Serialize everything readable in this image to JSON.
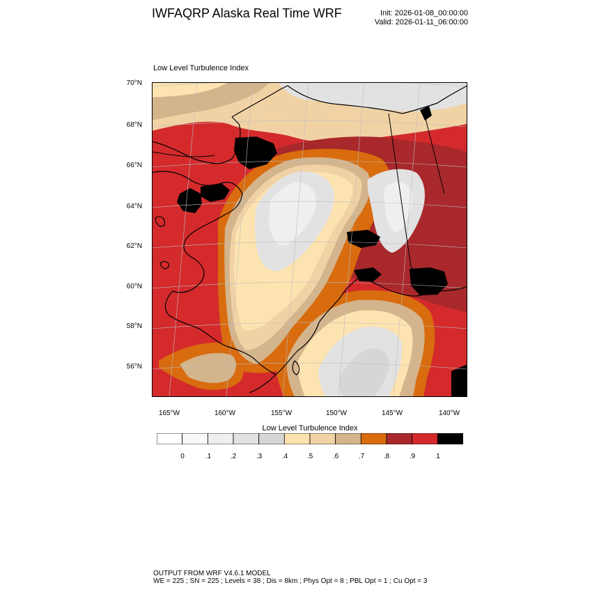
{
  "header": {
    "title": "IWFAQRP Alaska Real Time WRF",
    "init": "Init: 2026-01-08_00:00:00",
    "valid": "Valid: 2026-01-11_06:00:00"
  },
  "map": {
    "title": "Low Level Turbulence Index",
    "lat_labels": [
      "70°N",
      "68°N",
      "66°N",
      "64°N",
      "62°N",
      "60°N",
      "58°N",
      "56°N"
    ],
    "lon_labels": [
      "165°W",
      "160°W",
      "155°W",
      "150°W",
      "145°W",
      "140°W"
    ]
  },
  "colorbar": {
    "title": "Low Level Turbulence Index",
    "colors": [
      "#ffffff",
      "#f8f8f8",
      "#efefef",
      "#e2e2e2",
      "#d6d6d6",
      "#fde3b0",
      "#f1d2a5",
      "#d4b48c",
      "#d86c0e",
      "#a8282b",
      "#d42a2c",
      "#000000"
    ],
    "labels": [
      "0",
      ".1",
      ".2",
      ".3",
      ".4",
      ".5",
      ".6",
      ".7",
      ".8",
      ".9",
      "1"
    ]
  },
  "footer": {
    "line1": "OUTPUT FROM WRF V4.6.1 MODEL",
    "line2": "WE = 225 ; SN = 225 ; Levels = 38 ; Dis = 8km ; Phys Opt = 8 ; PBL Opt = 1 ; Cu Opt = 3"
  }
}
